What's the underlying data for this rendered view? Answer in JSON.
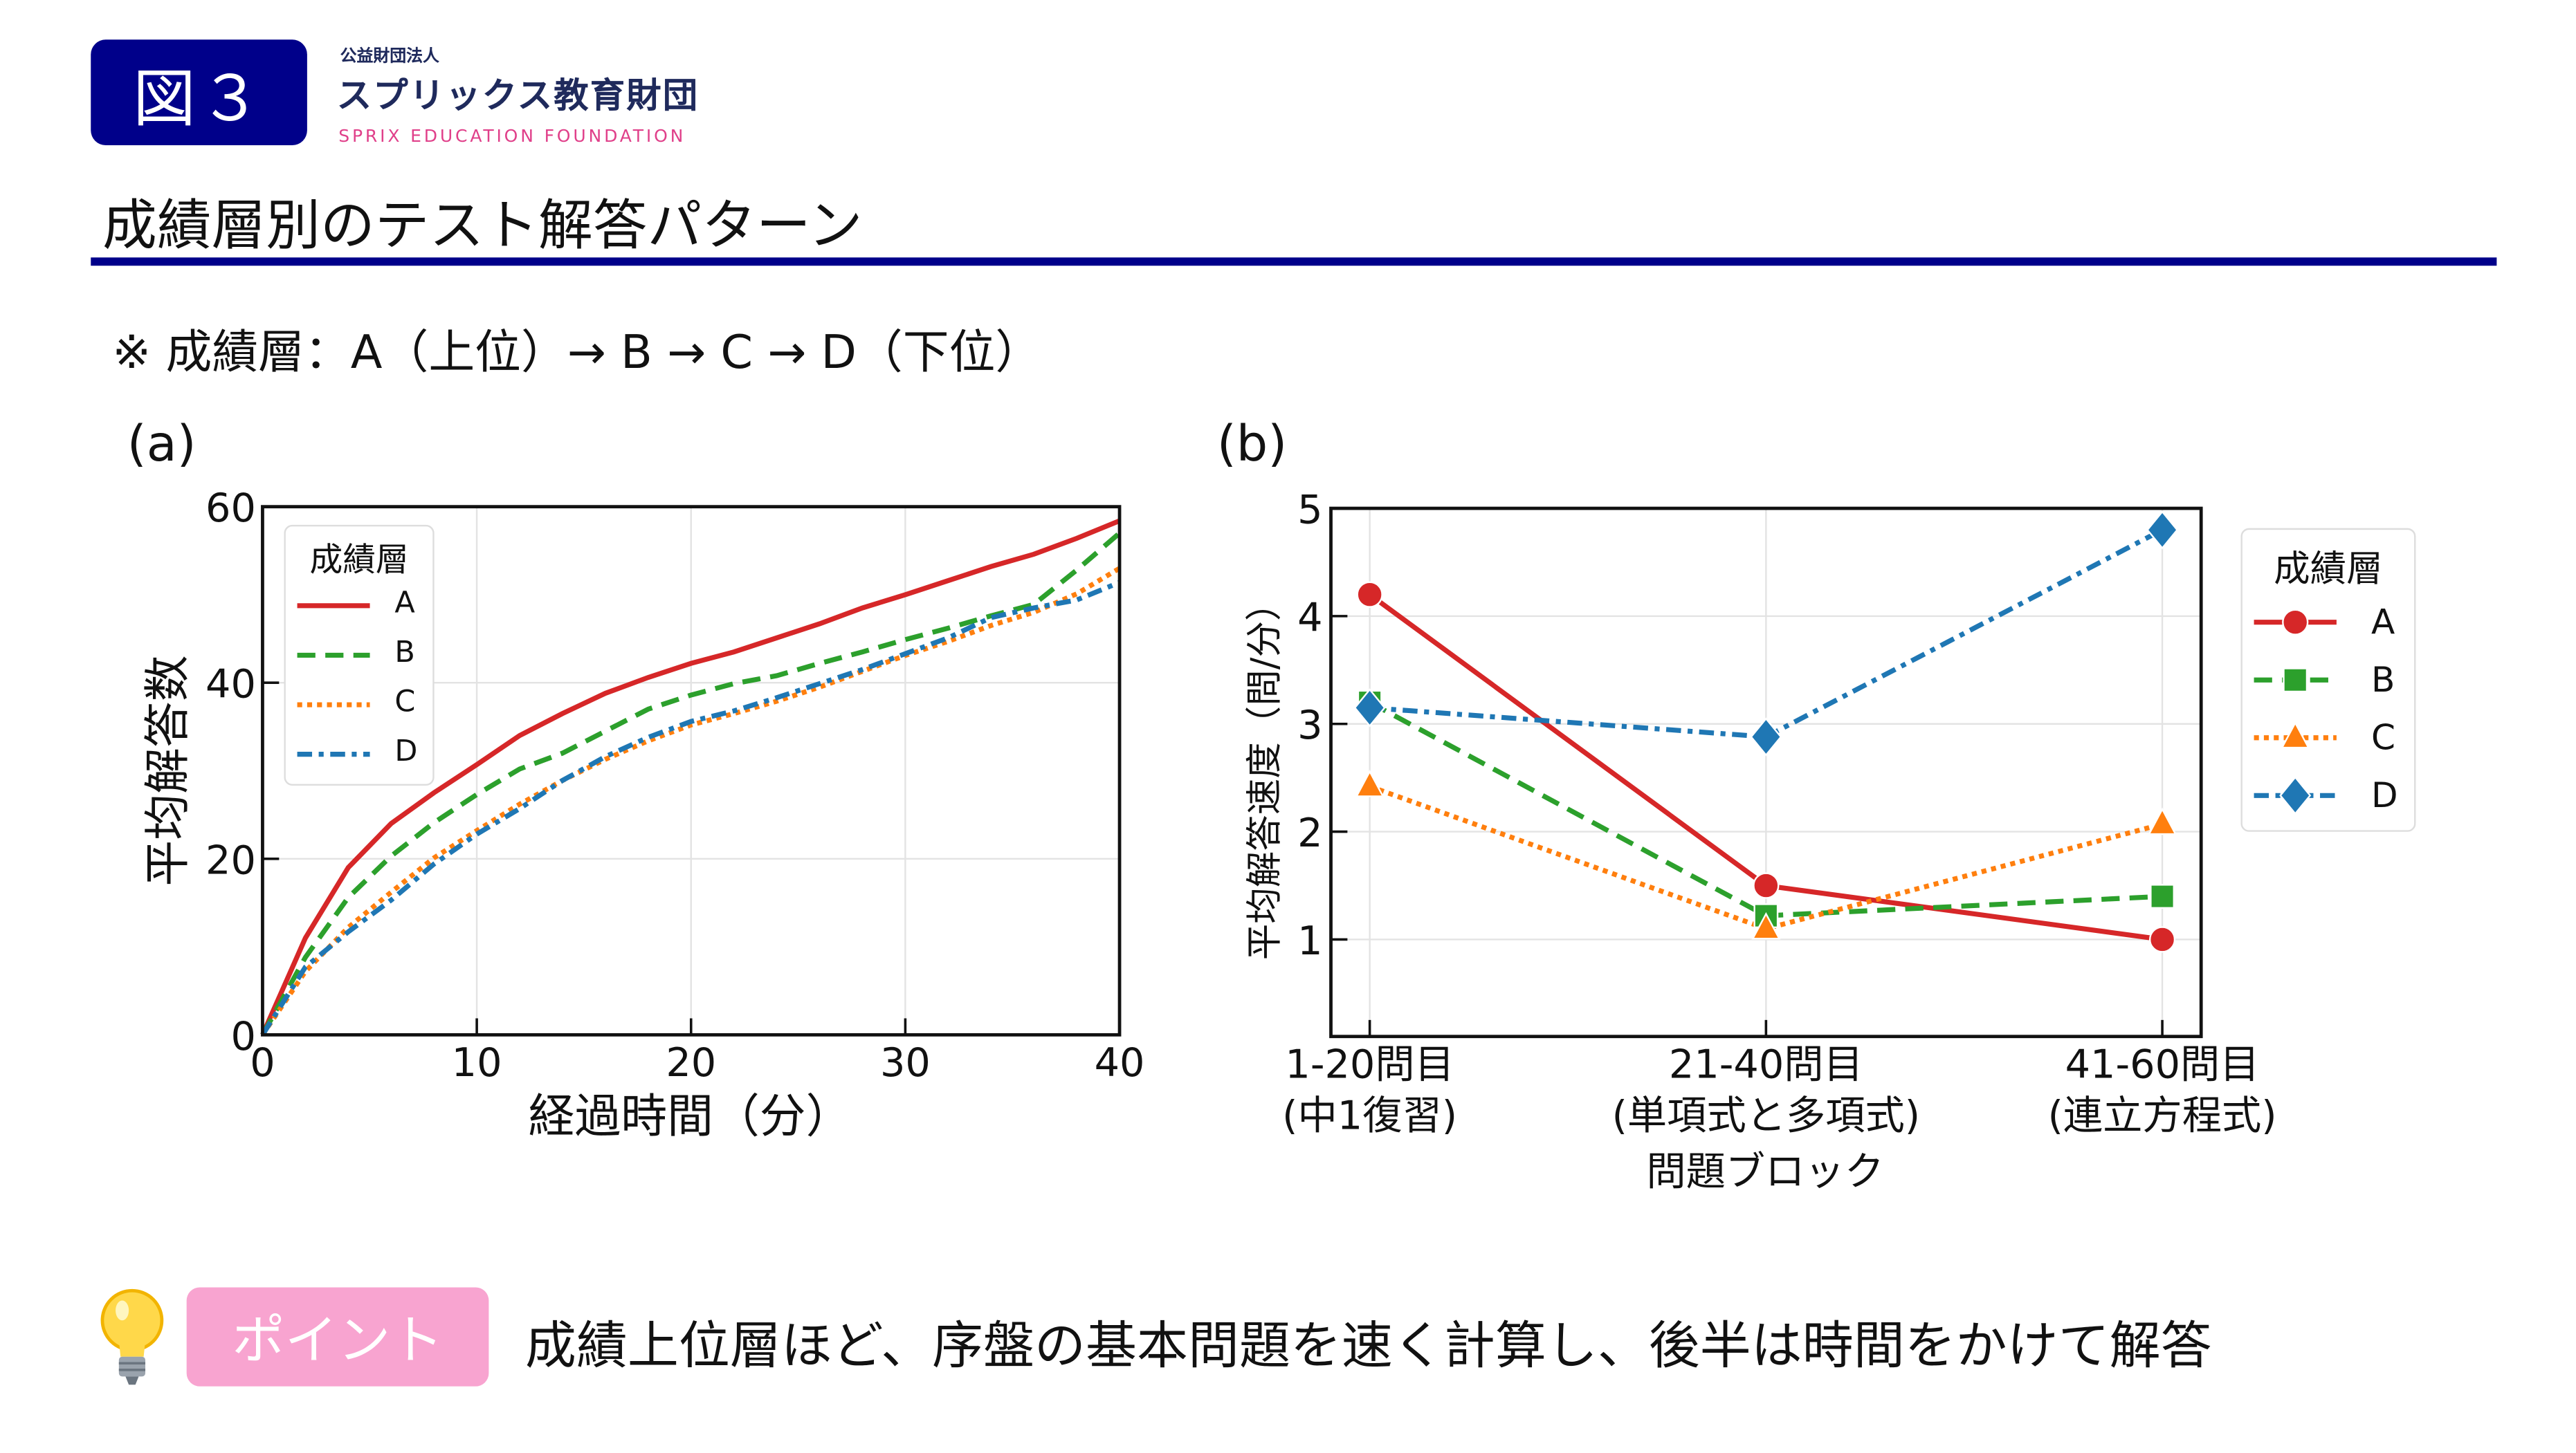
{
  "header": {
    "figure_badge": "図３",
    "org_type": "公益財団法人",
    "org_name": "スプリックス教育財団",
    "org_name_en": "SPRIX EDUCATION FOUNDATION",
    "title": "成績層別のテスト解答パターン",
    "note": "※ 成績層：A（上位）→ B → C → D（下位）"
  },
  "colors": {
    "navy": "#00008a",
    "pink": "#f8a4d0",
    "A": "#d62728",
    "B": "#2ca02c",
    "C": "#ff7f0e",
    "D": "#1f77b4"
  },
  "chart_data": [
    {
      "panel": "(a)",
      "type": "line",
      "xlabel": "経過時間（分）",
      "ylabel": "平均解答数",
      "xlim": [
        0,
        40
      ],
      "ylim": [
        0,
        60
      ],
      "xticks": [
        0,
        10,
        20,
        30,
        40
      ],
      "yticks": [
        0,
        20,
        40,
        60
      ],
      "grid": true,
      "legend": {
        "title": "成績層",
        "placement": "top-left"
      },
      "x": [
        0,
        2,
        4,
        6,
        8,
        10,
        12,
        14,
        16,
        18,
        20,
        22,
        24,
        26,
        28,
        30,
        32,
        34,
        36,
        38,
        40
      ],
      "series": [
        {
          "name": "A",
          "style": "solid",
          "values": [
            0,
            11,
            19,
            24,
            27.5,
            30.7,
            34,
            36.5,
            38.8,
            40.6,
            42.2,
            43.5,
            45.1,
            46.7,
            48.5,
            50,
            51.6,
            53.2,
            54.6,
            56.4,
            58.4
          ]
        },
        {
          "name": "B",
          "style": "dashed",
          "values": [
            0,
            8.8,
            15.6,
            20.3,
            24.1,
            27.3,
            30.2,
            32,
            34.5,
            37,
            38.6,
            39.9,
            40.8,
            42.2,
            43.5,
            44.9,
            46.2,
            47.6,
            48.9,
            52.8,
            57
          ]
        },
        {
          "name": "C",
          "style": "dotted",
          "values": [
            0,
            7.2,
            12.2,
            16.2,
            20.1,
            23.2,
            26.2,
            28.9,
            31.3,
            33.4,
            35.2,
            36.5,
            37.9,
            39.5,
            41.3,
            43.1,
            44.7,
            46.5,
            48,
            50.1,
            53
          ]
        },
        {
          "name": "D",
          "style": "dashdot",
          "values": [
            0,
            7.7,
            11.7,
            15.3,
            19.4,
            22.8,
            25.7,
            28.9,
            31.6,
            33.8,
            35.6,
            36.8,
            38.3,
            39.9,
            41.5,
            43.3,
            45.1,
            47.4,
            48.5,
            49.4,
            51.4
          ]
        }
      ]
    },
    {
      "panel": "(b)",
      "type": "line",
      "xlabel": "問題ブロック",
      "ylabel": "平均解答速度（問/分）",
      "categories": [
        [
          "1-20問目",
          "(中1復習)"
        ],
        [
          "21-40問目",
          "(単項式と多項式)"
        ],
        [
          "41-60問目",
          "(連立方程式)"
        ]
      ],
      "ylim": [
        0.1,
        5
      ],
      "yticks": [
        1,
        2,
        3,
        4,
        5
      ],
      "grid": true,
      "legend": {
        "title": "成績層",
        "placement": "outside-right"
      },
      "series": [
        {
          "name": "A",
          "marker": "circle",
          "style": "solid",
          "values": [
            4.2,
            1.5,
            1.0
          ]
        },
        {
          "name": "B",
          "marker": "square",
          "style": "dashed",
          "values": [
            3.2,
            1.22,
            1.4
          ]
        },
        {
          "name": "C",
          "marker": "triangle",
          "style": "dotted",
          "values": [
            2.42,
            1.1,
            2.07
          ]
        },
        {
          "name": "D",
          "marker": "diamond",
          "style": "dashdot",
          "values": [
            3.15,
            2.88,
            4.8
          ]
        }
      ]
    }
  ],
  "point": {
    "badge": "ポイント",
    "text": "成績上位層ほど、序盤の基本問題を速く計算し、後半は時間をかけて解答",
    "icon": "lightbulb-icon"
  }
}
